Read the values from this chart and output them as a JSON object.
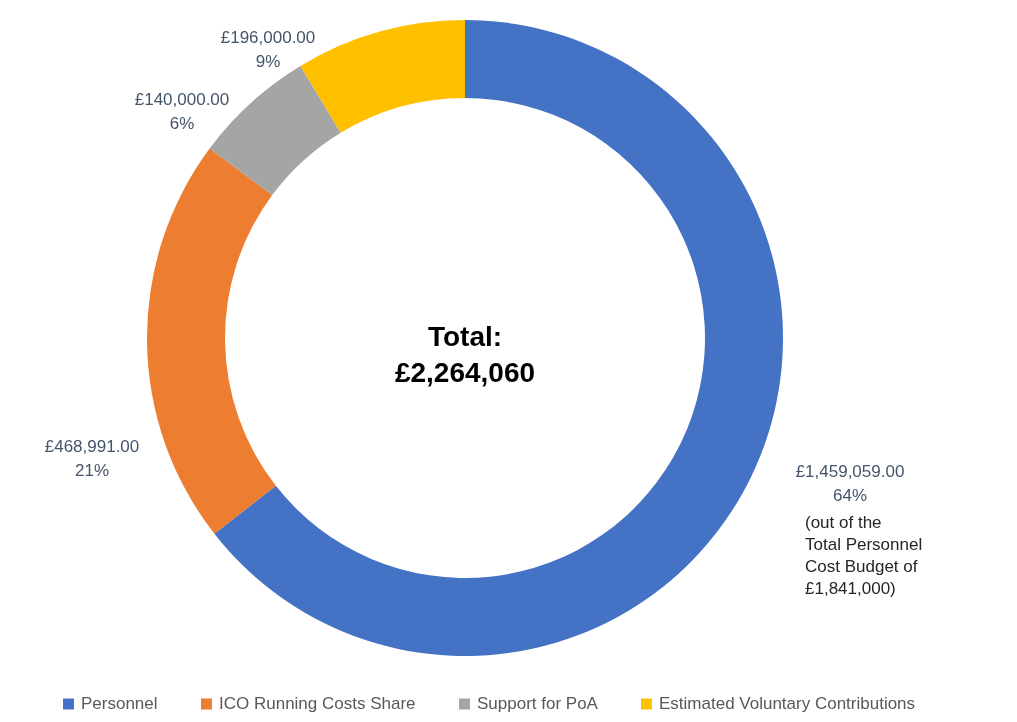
{
  "chart_data": {
    "type": "donut",
    "categories": [
      "Personnel",
      "ICO Running Costs Share",
      "Support for PoA",
      "Estimated Voluntary Contributions"
    ],
    "values": [
      1459059,
      468991,
      140000,
      196000
    ],
    "colors": [
      "#4472c4",
      "#ed7d31",
      "#a5a5a5",
      "#ffc000"
    ],
    "value_labels": [
      "£1,459,059.00\n64%",
      "£468,991.00\n21%",
      "£140,000.00\n6%",
      "£196,000.00\n9%"
    ],
    "annotations": [
      "Total:\n£2,264,060",
      "(out of the\nTotal Personnel\nCost Budget of\n£1,841,000)"
    ],
    "legend": "bottom"
  }
}
